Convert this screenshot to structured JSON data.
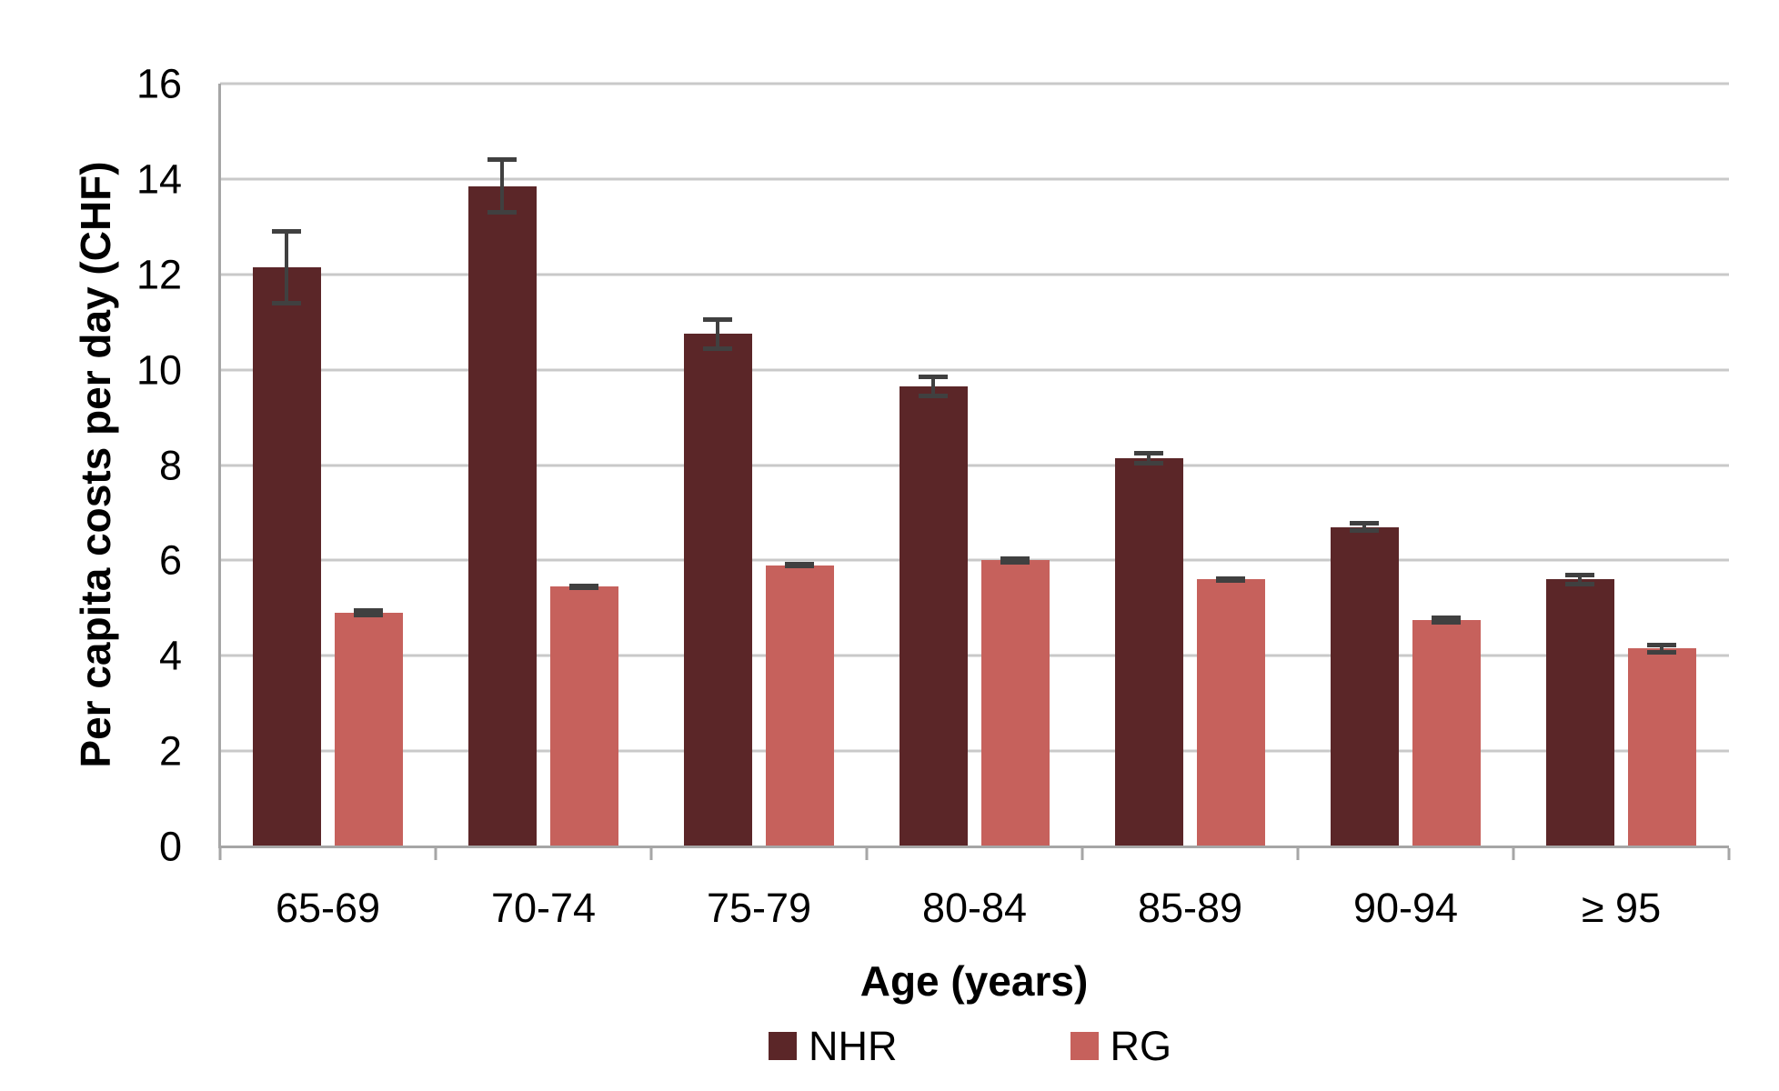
{
  "chart_data": {
    "type": "bar",
    "title": "",
    "xlabel": "Age (years)",
    "ylabel": "Per capita costs per day (CHF)",
    "categories": [
      "65-69",
      "70-74",
      "75-79",
      "80-84",
      "85-89",
      "90-94",
      "≥ 95"
    ],
    "series": [
      {
        "name": "NHR",
        "color": "#5B2628",
        "values": [
          12.15,
          13.85,
          10.75,
          9.65,
          8.15,
          6.7,
          5.6
        ],
        "errors": [
          0.8,
          0.6,
          0.35,
          0.25,
          0.15,
          0.12,
          0.14
        ]
      },
      {
        "name": "RG",
        "color": "#C6615C",
        "values": [
          4.9,
          5.45,
          5.9,
          6.0,
          5.6,
          4.75,
          4.15
        ],
        "errors": [
          0.1,
          0.07,
          0.07,
          0.09,
          0.07,
          0.1,
          0.13
        ]
      }
    ],
    "ylim": [
      0,
      16
    ],
    "yticks": [
      0,
      2,
      4,
      6,
      8,
      10,
      12,
      14,
      16
    ],
    "grid": true,
    "legend_position": "bottom",
    "colors": {
      "gridline": "#C9C9C9",
      "axis_line": "#A6A6A6",
      "error_bar": "#404040",
      "text": "#000000",
      "background": "#FFFFFF"
    }
  }
}
